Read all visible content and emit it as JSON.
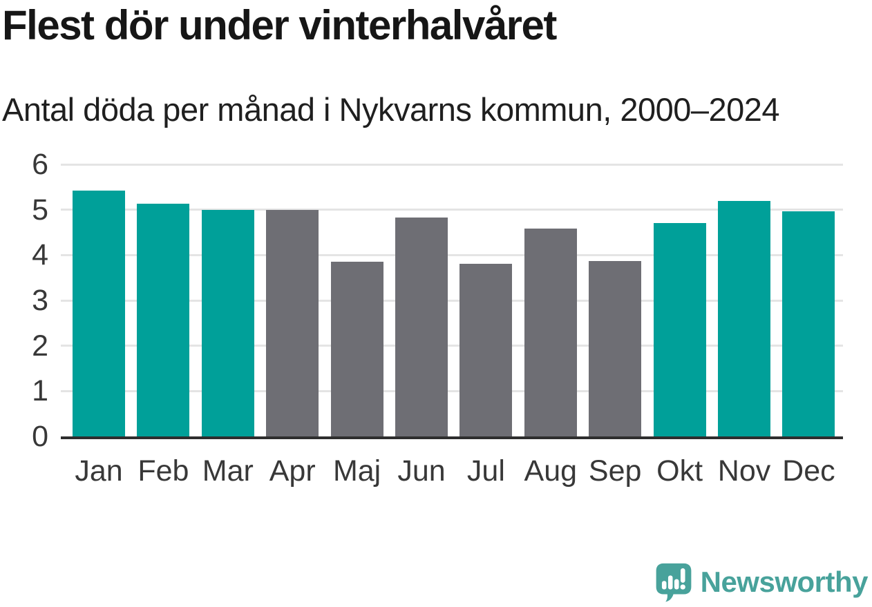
{
  "chart": {
    "title": "Flest dör under vinterhalvåret",
    "subtitle": "Antal döda per månad i Nykvarns kommun, 2000–2024"
  },
  "chart_data": {
    "type": "bar",
    "categories": [
      "Jan",
      "Feb",
      "Mar",
      "Apr",
      "Maj",
      "Jun",
      "Jul",
      "Aug",
      "Sep",
      "Okt",
      "Nov",
      "Dec"
    ],
    "values": [
      5.42,
      5.13,
      5.0,
      5.0,
      3.86,
      4.83,
      3.81,
      4.58,
      3.87,
      4.71,
      5.19,
      4.97
    ],
    "title": "Flest dör under vinterhalvåret",
    "subtitle": "Antal döda per månad i Nykvarns kommun, 2000–2024",
    "xlabel": "",
    "ylabel": "",
    "ylim": [
      0,
      6
    ],
    "yticks": [
      0,
      1,
      2,
      3,
      4,
      5,
      6
    ],
    "grid": true,
    "legend": "none",
    "highlighted_categories": [
      "Jan",
      "Feb",
      "Mar",
      "Okt",
      "Nov",
      "Dec"
    ],
    "highlight_color": "#00a099",
    "base_color": "#6e6e74"
  },
  "colors": {
    "background": "#ffffff",
    "gridline": "#e4e4e4",
    "axis_line": "#2e2e2e",
    "title_text": "#161616",
    "tick_text": "#383838",
    "logo_teal": "#48a29b"
  },
  "branding": {
    "logo_text": "Newsworthy"
  }
}
